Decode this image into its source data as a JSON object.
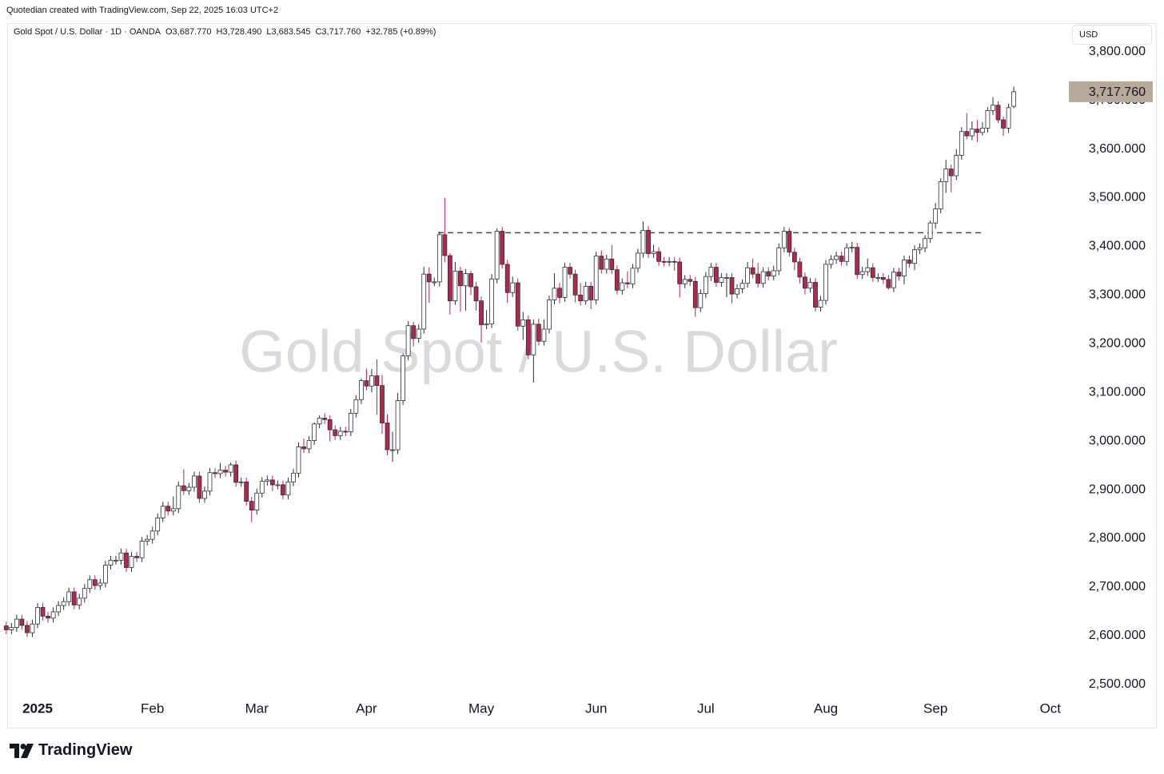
{
  "header": {
    "credit": "Quotedian created with TradingView.com, Sep 22, 2025 16:03 UTC+2",
    "symbol_line": "Gold Spot / U.S. Dollar · 1D · OANDA",
    "ohlc_labels": [
      "O3,687.770",
      "H3,728.490",
      "L3,683.545",
      "C3,717.760",
      "+32.785 (+0.89%)"
    ]
  },
  "footer": {
    "brand": "TradingView"
  },
  "chart_data": {
    "type": "candlestick",
    "watermark": "Gold Spot / U.S. Dollar",
    "currency": "USD",
    "up_color": "#ffffff",
    "down_color": "#b2284a",
    "outline_color": "#2a2e39",
    "grid": false,
    "ylim": [
      2470,
      3857
    ],
    "yticks": [
      {
        "value": 2500,
        "label": "2,500.000"
      },
      {
        "value": 2600,
        "label": "2,600.000"
      },
      {
        "value": 2700,
        "label": "2,700.000"
      },
      {
        "value": 2800,
        "label": "2,800.000"
      },
      {
        "value": 2900,
        "label": "2,900.000"
      },
      {
        "value": 3000,
        "label": "3,000.000"
      },
      {
        "value": 3100,
        "label": "3,100.000"
      },
      {
        "value": 3200,
        "label": "3,200.000"
      },
      {
        "value": 3300,
        "label": "3,300.000"
      },
      {
        "value": 3400,
        "label": "3,400.000"
      },
      {
        "value": 3500,
        "label": "3,500.000"
      },
      {
        "value": 3600,
        "label": "3,600.000"
      },
      {
        "value": 3700,
        "label": "3,700.000"
      },
      {
        "value": 3800,
        "label": "3,800.000"
      }
    ],
    "last_price": {
      "value": 3717.76,
      "label": "3,717.760",
      "color": "#b6a999"
    },
    "resistance": 3428,
    "categories": [
      null,
      null,
      null,
      null,
      null,
      null,
      "2025",
      null,
      null,
      null,
      null,
      null,
      null,
      null,
      null,
      null,
      null,
      null,
      null,
      null,
      null,
      null,
      null,
      null,
      null,
      null,
      null,
      null,
      "Feb",
      null,
      null,
      null,
      null,
      null,
      null,
      null,
      null,
      null,
      null,
      null,
      null,
      null,
      null,
      null,
      null,
      null,
      null,
      null,
      "Mar",
      null,
      null,
      null,
      null,
      null,
      null,
      null,
      null,
      null,
      null,
      null,
      null,
      null,
      null,
      null,
      null,
      null,
      null,
      null,
      null,
      "Apr",
      null,
      null,
      null,
      null,
      null,
      null,
      null,
      null,
      null,
      null,
      null,
      null,
      null,
      null,
      null,
      null,
      null,
      null,
      null,
      null,
      null,
      "May",
      null,
      null,
      null,
      null,
      null,
      null,
      null,
      null,
      null,
      null,
      null,
      null,
      null,
      null,
      null,
      null,
      null,
      null,
      null,
      null,
      null,
      "Jun",
      null,
      null,
      null,
      null,
      null,
      null,
      null,
      null,
      null,
      null,
      null,
      null,
      null,
      null,
      null,
      null,
      null,
      null,
      null,
      null,
      "Jul",
      null,
      null,
      null,
      null,
      null,
      null,
      null,
      null,
      null,
      null,
      null,
      null,
      null,
      null,
      null,
      null,
      null,
      null,
      null,
      null,
      null,
      null,
      "Aug",
      null,
      null,
      null,
      null,
      null,
      null,
      null,
      null,
      null,
      null,
      null,
      null,
      null,
      null,
      null,
      null,
      null,
      null,
      null,
      null,
      "Sep",
      null,
      null,
      null,
      null,
      null,
      null,
      null,
      null,
      null,
      null,
      null,
      null,
      null,
      null,
      null,
      null,
      null,
      null,
      null,
      null,
      null,
      "Oct"
    ],
    "open": [
      2620,
      2612,
      2617,
      2634,
      2621,
      2606,
      2624,
      2658,
      2640,
      2636,
      2649,
      2662,
      2670,
      2690,
      2663,
      2677,
      2697,
      2715,
      2703,
      2708,
      2745,
      2755,
      2755,
      2770,
      2740,
      2763,
      2760,
      2794,
      2798,
      2815,
      2842,
      2866,
      2856,
      2861,
      2908,
      2898,
      2905,
      2928,
      2882,
      2897,
      2935,
      2933,
      2940,
      2936,
      2951,
      2915,
      2916,
      2876,
      2858,
      2893,
      2917,
      2920,
      2910,
      2910,
      2889,
      2916,
      2934,
      2988,
      2984,
      3001,
      3035,
      3047,
      3044,
      3023,
      3011,
      3020,
      3019,
      3057,
      3085,
      3124,
      3113,
      3134,
      3114,
      3037,
      2982,
      2982,
      3083,
      3175,
      3237,
      3211,
      3230,
      3343,
      3327,
      3327,
      3424,
      3381,
      3288,
      3349,
      3319,
      3344,
      3317,
      3288,
      3239,
      3241,
      3333,
      3431,
      3363,
      3305,
      3325,
      3236,
      3249,
      3177,
      3240,
      3205,
      3230,
      3290,
      3314,
      3295,
      3357,
      3343,
      3300,
      3288,
      3318,
      3290,
      3380,
      3353,
      3374,
      3352,
      3310,
      3325,
      3323,
      3355,
      3386,
      3433,
      3385,
      3389,
      3369,
      3368,
      3369,
      3368,
      3323,
      3332,
      3328,
      3274,
      3303,
      3338,
      3357,
      3326,
      3336,
      3336,
      3302,
      3313,
      3324,
      3356,
      3343,
      3324,
      3348,
      3339,
      3350,
      3397,
      3431,
      3388,
      3368,
      3337,
      3314,
      3326,
      3275,
      3289,
      3363,
      3373,
      3380,
      3369,
      3397,
      3398,
      3342,
      3348,
      3356,
      3336,
      3336,
      3332,
      3315,
      3347,
      3339,
      3372,
      3365,
      3393,
      3397,
      3416,
      3448,
      3477,
      3533,
      3559,
      3545,
      3587,
      3636,
      3627,
      3641,
      3634,
      3643,
      3679,
      3690,
      3660,
      3643,
      3687.77,
      null,
      null,
      null,
      null,
      null,
      null,
      null
    ],
    "high": [
      2629,
      2626,
      2643,
      2643,
      2630,
      2633,
      2667,
      2667,
      2649,
      2658,
      2671,
      2679,
      2699,
      2699,
      2686,
      2706,
      2724,
      2724,
      2717,
      2754,
      2764,
      2764,
      2779,
      2779,
      2772,
      2772,
      2803,
      2807,
      2824,
      2851,
      2875,
      2875,
      2886,
      2917,
      2942,
      2914,
      2937,
      2937,
      2906,
      2944,
      2944,
      2955,
      2949,
      2956,
      2960,
      2925,
      2925,
      2885,
      2902,
      2926,
      2929,
      2929,
      2919,
      2919,
      2925,
      2943,
      2997,
      3005,
      3010,
      3038,
      3053,
      3057,
      3053,
      3032,
      3029,
      3029,
      3066,
      3094,
      3128,
      3149,
      3148,
      3168,
      3136,
      3055,
      3019,
      3099,
      3180,
      3246,
      3245,
      3240,
      3358,
      3357,
      3336,
      3430,
      3500,
      3386,
      3368,
      3358,
      3353,
      3350,
      3327,
      3297,
      3269,
      3343,
      3437,
      3440,
      3372,
      3338,
      3334,
      3265,
      3258,
      3250,
      3252,
      3250,
      3299,
      3345,
      3325,
      3366,
      3366,
      3352,
      3325,
      3327,
      3327,
      3389,
      3392,
      3383,
      3403,
      3361,
      3334,
      3349,
      3364,
      3395,
      3451,
      3442,
      3403,
      3398,
      3378,
      3378,
      3378,
      3377,
      3341,
      3341,
      3337,
      3312,
      3347,
      3366,
      3366,
      3345,
      3345,
      3345,
      3322,
      3332,
      3368,
      3375,
      3366,
      3357,
      3357,
      3360,
      3406,
      3440,
      3438,
      3397,
      3377,
      3346,
      3335,
      3335,
      3298,
      3372,
      3382,
      3389,
      3389,
      3406,
      3409,
      3407,
      3358,
      3375,
      3365,
      3345,
      3345,
      3341,
      3356,
      3356,
      3381,
      3381,
      3402,
      3406,
      3423,
      3453,
      3489,
      3540,
      3578,
      3568,
      3600,
      3645,
      3674,
      3657,
      3660,
      3655,
      3686,
      3707,
      3698,
      3667,
      3693,
      3728.49,
      null,
      null,
      null,
      null,
      null,
      null,
      null
    ],
    "low": [
      2603,
      2603,
      2608,
      2612,
      2597,
      2597,
      2615,
      2631,
      2627,
      2627,
      2640,
      2653,
      2661,
      2654,
      2654,
      2668,
      2688,
      2694,
      2694,
      2699,
      2736,
      2746,
      2746,
      2731,
      2731,
      2751,
      2751,
      2785,
      2789,
      2806,
      2833,
      2847,
      2847,
      2852,
      2889,
      2889,
      2896,
      2873,
      2873,
      2888,
      2924,
      2924,
      2927,
      2927,
      2906,
      2906,
      2867,
      2833,
      2849,
      2884,
      2908,
      2897,
      2901,
      2880,
      2880,
      2907,
      2925,
      2975,
      2975,
      2992,
      3026,
      3035,
      2999,
      3002,
      3002,
      3010,
      3010,
      3048,
      3076,
      3104,
      3100,
      3054,
      3015,
      2971,
      2957,
      2973,
      3074,
      3166,
      3194,
      3202,
      3221,
      3284,
      3318,
      3318,
      3367,
      3260,
      3280,
      3266,
      3268,
      3300,
      3268,
      3202,
      3230,
      3232,
      3324,
      3354,
      3284,
      3296,
      3227,
      3208,
      3168,
      3120,
      3196,
      3196,
      3221,
      3281,
      3283,
      3286,
      3334,
      3285,
      3279,
      3280,
      3271,
      3281,
      3344,
      3344,
      3343,
      3301,
      3301,
      3314,
      3314,
      3346,
      3377,
      3376,
      3376,
      3360,
      3359,
      3359,
      3350,
      3295,
      3314,
      3319,
      3255,
      3265,
      3294,
      3329,
      3317,
      3317,
      3296,
      3283,
      3293,
      3304,
      3315,
      3334,
      3315,
      3315,
      3330,
      3330,
      3341,
      3388,
      3379,
      3351,
      3324,
      3301,
      3305,
      3266,
      3266,
      3280,
      3354,
      3364,
      3360,
      3360,
      3388,
      3333,
      3333,
      3339,
      3327,
      3327,
      3323,
      3311,
      3306,
      3330,
      3322,
      3356,
      3351,
      3384,
      3388,
      3407,
      3436,
      3468,
      3510,
      3511,
      3536,
      3578,
      3620,
      3618,
      3614,
      3628,
      3634,
      3670,
      3654,
      3627,
      3633,
      3683.545,
      null,
      null,
      null,
      null,
      null,
      null,
      null
    ],
    "close": [
      2612,
      2617,
      2634,
      2621,
      2606,
      2624,
      2658,
      2640,
      2636,
      2649,
      2662,
      2670,
      2690,
      2663,
      2677,
      2697,
      2715,
      2703,
      2708,
      2745,
      2755,
      2755,
      2770,
      2740,
      2763,
      2760,
      2794,
      2798,
      2815,
      2842,
      2866,
      2856,
      2861,
      2908,
      2898,
      2905,
      2928,
      2882,
      2897,
      2935,
      2933,
      2940,
      2936,
      2951,
      2915,
      2916,
      2876,
      2858,
      2893,
      2917,
      2920,
      2910,
      2910,
      2889,
      2916,
      2934,
      2988,
      2984,
      3001,
      3035,
      3047,
      3044,
      3023,
      3011,
      3020,
      3019,
      3057,
      3085,
      3124,
      3113,
      3134,
      3114,
      3037,
      2982,
      2982,
      3083,
      3175,
      3237,
      3211,
      3230,
      3343,
      3327,
      3327,
      3424,
      3381,
      3288,
      3349,
      3319,
      3344,
      3317,
      3288,
      3239,
      3241,
      3333,
      3431,
      3363,
      3305,
      3325,
      3236,
      3249,
      3177,
      3240,
      3205,
      3230,
      3290,
      3314,
      3295,
      3357,
      3343,
      3300,
      3288,
      3318,
      3290,
      3380,
      3353,
      3374,
      3352,
      3310,
      3325,
      3323,
      3355,
      3386,
      3433,
      3385,
      3389,
      3369,
      3368,
      3369,
      3368,
      3323,
      3332,
      3328,
      3274,
      3303,
      3338,
      3357,
      3326,
      3336,
      3336,
      3302,
      3313,
      3324,
      3356,
      3343,
      3324,
      3348,
      3339,
      3350,
      3397,
      3431,
      3388,
      3368,
      3337,
      3314,
      3326,
      3275,
      3289,
      3363,
      3373,
      3380,
      3369,
      3397,
      3398,
      3342,
      3348,
      3356,
      3336,
      3336,
      3332,
      3315,
      3347,
      3339,
      3372,
      3365,
      3393,
      3397,
      3416,
      3448,
      3477,
      3533,
      3559,
      3545,
      3587,
      3636,
      3627,
      3641,
      3634,
      3643,
      3679,
      3690,
      3660,
      3643,
      3684.975,
      3717.76,
      null,
      null,
      null,
      null,
      null,
      null,
      null
    ]
  }
}
